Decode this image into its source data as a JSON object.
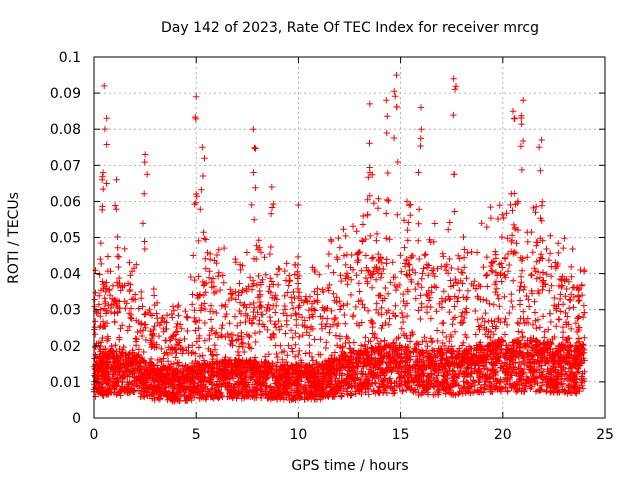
{
  "chart_data": {
    "type": "scatter",
    "title": "Day 142 of 2023, Rate Of TEC Index for receiver mrcg",
    "xlabel": "GPS time / hours",
    "ylabel": "ROTI / TECUs",
    "xlim": [
      0,
      25
    ],
    "ylim": [
      0,
      0.1
    ],
    "x_ticks": [
      "0",
      "5",
      "10",
      "15",
      "20",
      "25"
    ],
    "y_ticks": [
      "0",
      "0.01",
      "0.02",
      "0.03",
      "0.04",
      "0.05",
      "0.06",
      "0.07",
      "0.08",
      "0.09",
      "0.1"
    ],
    "grid": true,
    "marker": "+",
    "color": "#ff0000",
    "data_x_range": [
      0,
      24
    ],
    "baseline_profile": {
      "hours": [
        0,
        1,
        2,
        3,
        4,
        5,
        6,
        7,
        8,
        9,
        10,
        11,
        12,
        13,
        14,
        15,
        16,
        17,
        18,
        19,
        20,
        21,
        22,
        23,
        24
      ],
      "typical_roti": [
        0.013,
        0.014,
        0.013,
        0.011,
        0.01,
        0.011,
        0.012,
        0.012,
        0.012,
        0.011,
        0.011,
        0.011,
        0.013,
        0.014,
        0.015,
        0.015,
        0.014,
        0.014,
        0.014,
        0.015,
        0.016,
        0.016,
        0.016,
        0.015,
        0.015
      ],
      "upper_envelope": [
        0.035,
        0.04,
        0.035,
        0.03,
        0.025,
        0.04,
        0.04,
        0.035,
        0.04,
        0.035,
        0.035,
        0.035,
        0.045,
        0.05,
        0.05,
        0.05,
        0.045,
        0.045,
        0.045,
        0.045,
        0.05,
        0.05,
        0.05,
        0.04,
        0.035
      ]
    },
    "notable_points": [
      {
        "x": 0.5,
        "y": 0.092
      },
      {
        "x": 0.4,
        "y": 0.066
      },
      {
        "x": 1.1,
        "y": 0.066
      },
      {
        "x": 2.5,
        "y": 0.073
      },
      {
        "x": 5.0,
        "y": 0.089
      },
      {
        "x": 5.3,
        "y": 0.075
      },
      {
        "x": 7.8,
        "y": 0.08
      },
      {
        "x": 8.7,
        "y": 0.064
      },
      {
        "x": 10.0,
        "y": 0.059
      },
      {
        "x": 13.5,
        "y": 0.087
      },
      {
        "x": 14.3,
        "y": 0.088
      },
      {
        "x": 14.8,
        "y": 0.095
      },
      {
        "x": 16.0,
        "y": 0.086
      },
      {
        "x": 17.6,
        "y": 0.094
      },
      {
        "x": 20.5,
        "y": 0.085
      },
      {
        "x": 21.0,
        "y": 0.088
      },
      {
        "x": 21.9,
        "y": 0.077
      },
      {
        "x": 23.8,
        "y": 0.041
      }
    ]
  }
}
